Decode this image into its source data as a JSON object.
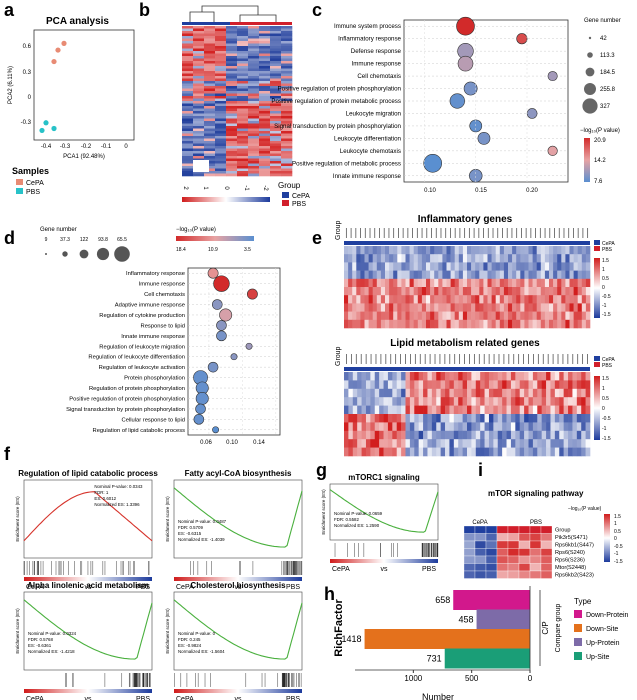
{
  "panels": {
    "a": {
      "label": "a",
      "title": "PCA analysis",
      "xlabel": "PCA1 (92.48%)",
      "ylabel": "PCA2 (6.11%)",
      "yticks": [
        "0.6",
        "0.3",
        "0",
        "-0.3"
      ],
      "xticks": [
        "-0.4",
        "-0.3",
        "-0.2",
        "-0.1",
        "0"
      ],
      "legend_title": "Samples",
      "legend": [
        "CePA",
        "PBS"
      ]
    },
    "b": {
      "label": "b",
      "scale": [
        "2",
        "1",
        "0",
        "-1",
        "-2"
      ],
      "legend_title": "Group",
      "legend": [
        "CePA",
        "PBS"
      ]
    },
    "c": {
      "label": "c",
      "terms": [
        "Immune system process",
        "Inflammatory response",
        "Defense response",
        "Immune response",
        "Cell chemotaxis",
        "Positive regulation of protein phosphorylation",
        "Positive regulation of protein metabolic process",
        "Leukocyte migration",
        "Signal transduction by protein phosphorylation",
        "Leukocyte differentiation",
        "Leukocyte chemotaxis",
        "Positive regulation of metabolic process",
        "Innate immune response"
      ],
      "xticks": [
        "0.10",
        "0.15",
        "0.20"
      ],
      "size_title": "Gene number",
      "sizes": [
        "42",
        "113.3",
        "184.5",
        "255.8",
        "327"
      ],
      "color_title": "−log₁₀(P value)",
      "color_ticks": [
        "20.9",
        "14.2",
        "7.6"
      ]
    },
    "d": {
      "label": "d",
      "size_title": "Gene number",
      "sizes": [
        "9",
        "37.3",
        "122",
        "93.8",
        "65.5"
      ],
      "color_title": "−log₁₀(P value)",
      "color_ticks": [
        "18.4",
        "10.9",
        "3.5"
      ],
      "terms": [
        "Inflammatory response",
        "Immune response",
        "Cell chemotaxis",
        "Adaptive immune response",
        "Regulation of cytokine production",
        "Response to lipid",
        "Innate immune response",
        "Regulation of leukocyte migration",
        "Regulation of leukocyte differentiation",
        "Regulation of leukocyte activation",
        "Protein phosphorylation",
        "Regulation of protein phosphorylation",
        "Positive regulation of protein phosphorylation",
        "Signal transduction by protein phosphorylation",
        "Cellular response to lipid",
        "Regulation of lipid catabolic process"
      ],
      "xticks": [
        "0.06",
        "0.10",
        "0.14"
      ]
    },
    "e": {
      "label": "e",
      "title1": "Inflammatory genes",
      "title2": "Lipid metabolism related genes",
      "row_label": "Group",
      "legend": [
        "CePA",
        "PBS"
      ],
      "scale1": [
        "1.5",
        "1",
        "0.5",
        "0",
        "-0.5",
        "-1",
        "-1.5"
      ],
      "scale2": [
        "1.5",
        "1",
        "0.5",
        "0",
        "-0.5",
        "-1",
        "-1.5"
      ]
    },
    "f": {
      "label": "f",
      "plots": [
        {
          "title": "Regulation of lipid catabolic process",
          "stats": [
            "Nominal P-value: 0.0343",
            "FDR: 1",
            "ES: 0.6012",
            "Normalized ES: 1.3396"
          ]
        },
        {
          "title": "Fatty acyl-CoA biosynthesis",
          "stats": [
            "Nominal P-value: 0.0487",
            "FDR: 0.5709",
            "ES: -0.6315",
            "Normalized ES: -1.4039"
          ]
        },
        {
          "title": "Alpha linolenic acid metabolism",
          "stats": [
            "Nominal P-value: 0.0324",
            "FDR: 0.5768",
            "ES: -0.6361",
            "Normalized ES: -1.4218"
          ]
        },
        {
          "title": "Cholesterol biosynthesis",
          "stats": [
            "Nominal P-value: 0",
            "FDR: 0.245",
            "ES: -0.9824",
            "Normalized ES: -1.5604"
          ]
        }
      ],
      "ylabel": "Enrichment score (ES)",
      "x_left": "CePA",
      "x_vs": "vs",
      "x_right": "PBS"
    },
    "g": {
      "label": "g",
      "title": "mTORC1 signaling",
      "stats": [
        "Nominal P-value: 0.0659",
        "FDR: 0.5582",
        "Normalized ES: 1.2590"
      ],
      "ylabel": "Enrichment score (ES)",
      "x_left": "CePA",
      "x_vs": "vs",
      "x_right": "PBS"
    },
    "i": {
      "label": "i",
      "title": "mTOR signaling pathway",
      "groups": [
        "CePA",
        "PBS"
      ],
      "rows": [
        "Group",
        "Pik3r5(S471)",
        "Rps6kb1(S447)",
        "Rps6(S240)",
        "Rps6(S236)",
        "Mtor(S2448)",
        "Rps6kb2(S423)"
      ],
      "color_title": "−log₁₀(P value)",
      "scale": [
        "1.5",
        "1",
        "0.5",
        "0",
        "-0.5",
        "-1",
        "-1.5"
      ]
    }
  },
  "chart_data": [
    {
      "panel": "a",
      "type": "scatter",
      "title": "PCA analysis",
      "xlabel": "PCA1 (92.48%)",
      "ylabel": "PCA2 (6.11%)",
      "xlim": [
        -0.48,
        0.02
      ],
      "ylim": [
        -0.45,
        0.7
      ],
      "series": [
        {
          "name": "CePA",
          "x": [
            -0.33,
            -0.36,
            -0.38
          ],
          "y": [
            0.56,
            0.49,
            0.37
          ]
        },
        {
          "name": "PBS",
          "x": [
            -0.42,
            -0.38,
            -0.44
          ],
          "y": [
            -0.27,
            -0.33,
            -0.35
          ]
        }
      ]
    },
    {
      "panel": "c",
      "type": "scatter",
      "xlim": [
        0.08,
        0.24
      ],
      "points": [
        {
          "term": "Immune system process",
          "x": 0.14,
          "genes": 327,
          "p": 20.9
        },
        {
          "term": "Inflammatory response",
          "x": 0.195,
          "genes": 70,
          "p": 19
        },
        {
          "term": "Defense response",
          "x": 0.14,
          "genes": 230,
          "p": 11
        },
        {
          "term": "Immune response",
          "x": 0.14,
          "genes": 200,
          "p": 12
        },
        {
          "term": "Cell chemotaxis",
          "x": 0.225,
          "genes": 48,
          "p": 11
        },
        {
          "term": "Positive regulation of protein phosphorylation",
          "x": 0.145,
          "genes": 140,
          "p": 9
        },
        {
          "term": "Positive regulation of protein metabolic process",
          "x": 0.132,
          "genes": 190,
          "p": 8
        },
        {
          "term": "Leukocyte migration",
          "x": 0.205,
          "genes": 60,
          "p": 10
        },
        {
          "term": "Signal transduction by protein phosphorylation",
          "x": 0.15,
          "genes": 110,
          "p": 8
        },
        {
          "term": "Leukocyte differentiation",
          "x": 0.158,
          "genes": 110,
          "p": 9
        },
        {
          "term": "Leukocyte chemotaxis",
          "x": 0.225,
          "genes": 50,
          "p": 14
        },
        {
          "term": "Positive regulation of metabolic process",
          "x": 0.108,
          "genes": 327,
          "p": 7.6
        },
        {
          "term": "Innate immune response",
          "x": 0.15,
          "genes": 130,
          "p": 9
        }
      ]
    },
    {
      "panel": "d",
      "type": "scatter",
      "xlim": [
        0.035,
        0.145
      ],
      "points": [
        {
          "term": "Inflammatory response",
          "x": 0.065,
          "genes": 40,
          "p": 12
        },
        {
          "term": "Immune response",
          "x": 0.075,
          "genes": 122,
          "p": 18.4
        },
        {
          "term": "Cell chemotaxis",
          "x": 0.112,
          "genes": 40,
          "p": 17
        },
        {
          "term": "Adaptive immune response",
          "x": 0.07,
          "genes": 37.3,
          "p": 6
        },
        {
          "term": "Regulation of cytokine production",
          "x": 0.08,
          "genes": 65.5,
          "p": 10
        },
        {
          "term": "Response to lipid",
          "x": 0.075,
          "genes": 37.3,
          "p": 6
        },
        {
          "term": "Innate immune response",
          "x": 0.075,
          "genes": 37.3,
          "p": 5
        },
        {
          "term": "Regulation of leukocyte migration",
          "x": 0.108,
          "genes": 9,
          "p": 7
        },
        {
          "term": "Regulation of leukocyte differentiation",
          "x": 0.09,
          "genes": 9,
          "p": 6
        },
        {
          "term": "Regulation of leukocyte activation",
          "x": 0.065,
          "genes": 37.3,
          "p": 5
        },
        {
          "term": "Protein phosphorylation",
          "x": 0.05,
          "genes": 93.8,
          "p": 4
        },
        {
          "term": "Regulation of protein phosphorylation",
          "x": 0.052,
          "genes": 65.5,
          "p": 4
        },
        {
          "term": "Positive regulation of protein phosphorylation",
          "x": 0.052,
          "genes": 65.5,
          "p": 4
        },
        {
          "term": "Signal transduction by protein phosphorylation",
          "x": 0.05,
          "genes": 37.3,
          "p": 4
        },
        {
          "term": "Cellular response to lipid",
          "x": 0.048,
          "genes": 37.3,
          "p": 4
        },
        {
          "term": "Regulation of lipid catabolic process",
          "x": 0.068,
          "genes": 9,
          "p": 3.5
        }
      ]
    },
    {
      "panel": "h",
      "type": "bar",
      "orientation": "horizontal",
      "ylabel": "RichFactor",
      "xlabel": "Number",
      "group_label": "Compare group",
      "group": "C/P",
      "legend_title": "Type",
      "xticks": [
        "1000",
        "500",
        "0"
      ],
      "xlim": [
        1500,
        0
      ],
      "categories": [
        "Down-Protein",
        "Down-Site",
        "Up-Protein",
        "Up-Site"
      ],
      "values": [
        658,
        1418,
        458,
        731
      ],
      "colors": [
        "#d2188c",
        "#e4711c",
        "#7d6ba8",
        "#1a9e77"
      ]
    }
  ]
}
